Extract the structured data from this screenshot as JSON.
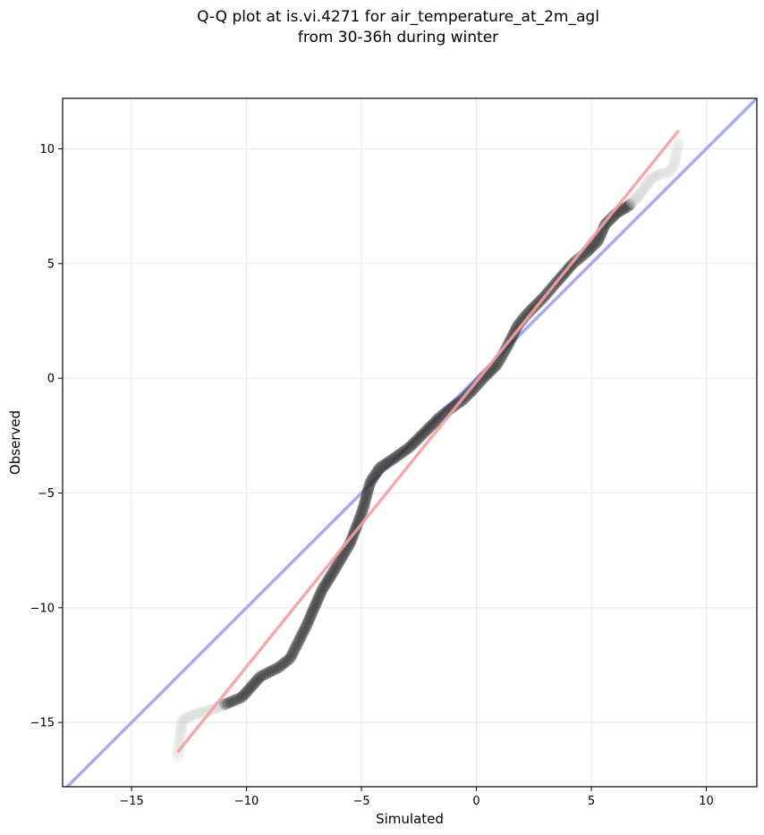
{
  "title_line1": "Q-Q plot at is.vi.4271 for air_temperature_at_2m_agl",
  "title_line2": "from 30-36h during winter",
  "chart_data": {
    "type": "scatter",
    "xlabel": "Simulated",
    "ylabel": "Observed",
    "xlim": [
      -18,
      12.2
    ],
    "ylim": [
      -17.8,
      12.2
    ],
    "xticks": [
      -15,
      -10,
      -5,
      0,
      5,
      10
    ],
    "yticks": [
      -15,
      -10,
      -5,
      0,
      5,
      10
    ],
    "xtick_labels": [
      "−15",
      "−10",
      "−5",
      "0",
      "5",
      "10"
    ],
    "ytick_labels": [
      "−15",
      "−10",
      "−5",
      "0",
      "5",
      "10"
    ],
    "grid": true,
    "reference_line": {
      "type": "y=x",
      "color": "#aaaaee"
    },
    "fit_line": {
      "color": "#f4a0a4",
      "x": [
        -13.0,
        8.8
      ],
      "y": [
        -16.3,
        10.8
      ]
    },
    "quantile_curve": {
      "color_dark": "#2a2a2a",
      "color_light": "#cccccc",
      "x": [
        -13.0,
        -12.8,
        -12.4,
        -11.4,
        -10.2,
        -9.4,
        -8.6,
        -8.1,
        -7.8,
        -7.4,
        -7.1,
        -6.7,
        -6.2,
        -5.5,
        -5.15,
        -4.9,
        -4.75,
        -4.6,
        -4.2,
        -3.6,
        -2.9,
        -2.2,
        -1.6,
        -1.1,
        -0.6,
        -0.15,
        0.3,
        0.9,
        1.3,
        1.8,
        2.2,
        2.9,
        3.5,
        4.2,
        4.8,
        5.3,
        5.6,
        6.1,
        6.6,
        7.1,
        7.6,
        8.0,
        8.4,
        8.6,
        8.8
      ],
      "y": [
        -16.5,
        -14.9,
        -14.7,
        -14.4,
        -13.9,
        -13.0,
        -12.6,
        -12.2,
        -11.6,
        -10.8,
        -10.1,
        -9.2,
        -8.4,
        -7.2,
        -6.3,
        -5.6,
        -5.0,
        -4.5,
        -3.9,
        -3.5,
        -3.0,
        -2.3,
        -1.7,
        -1.3,
        -0.95,
        -0.5,
        0.0,
        0.6,
        1.3,
        2.3,
        2.8,
        3.5,
        4.2,
        5.0,
        5.5,
        6.0,
        6.7,
        7.2,
        7.5,
        8.0,
        8.7,
        8.9,
        9.0,
        9.3,
        10.3
      ]
    }
  }
}
